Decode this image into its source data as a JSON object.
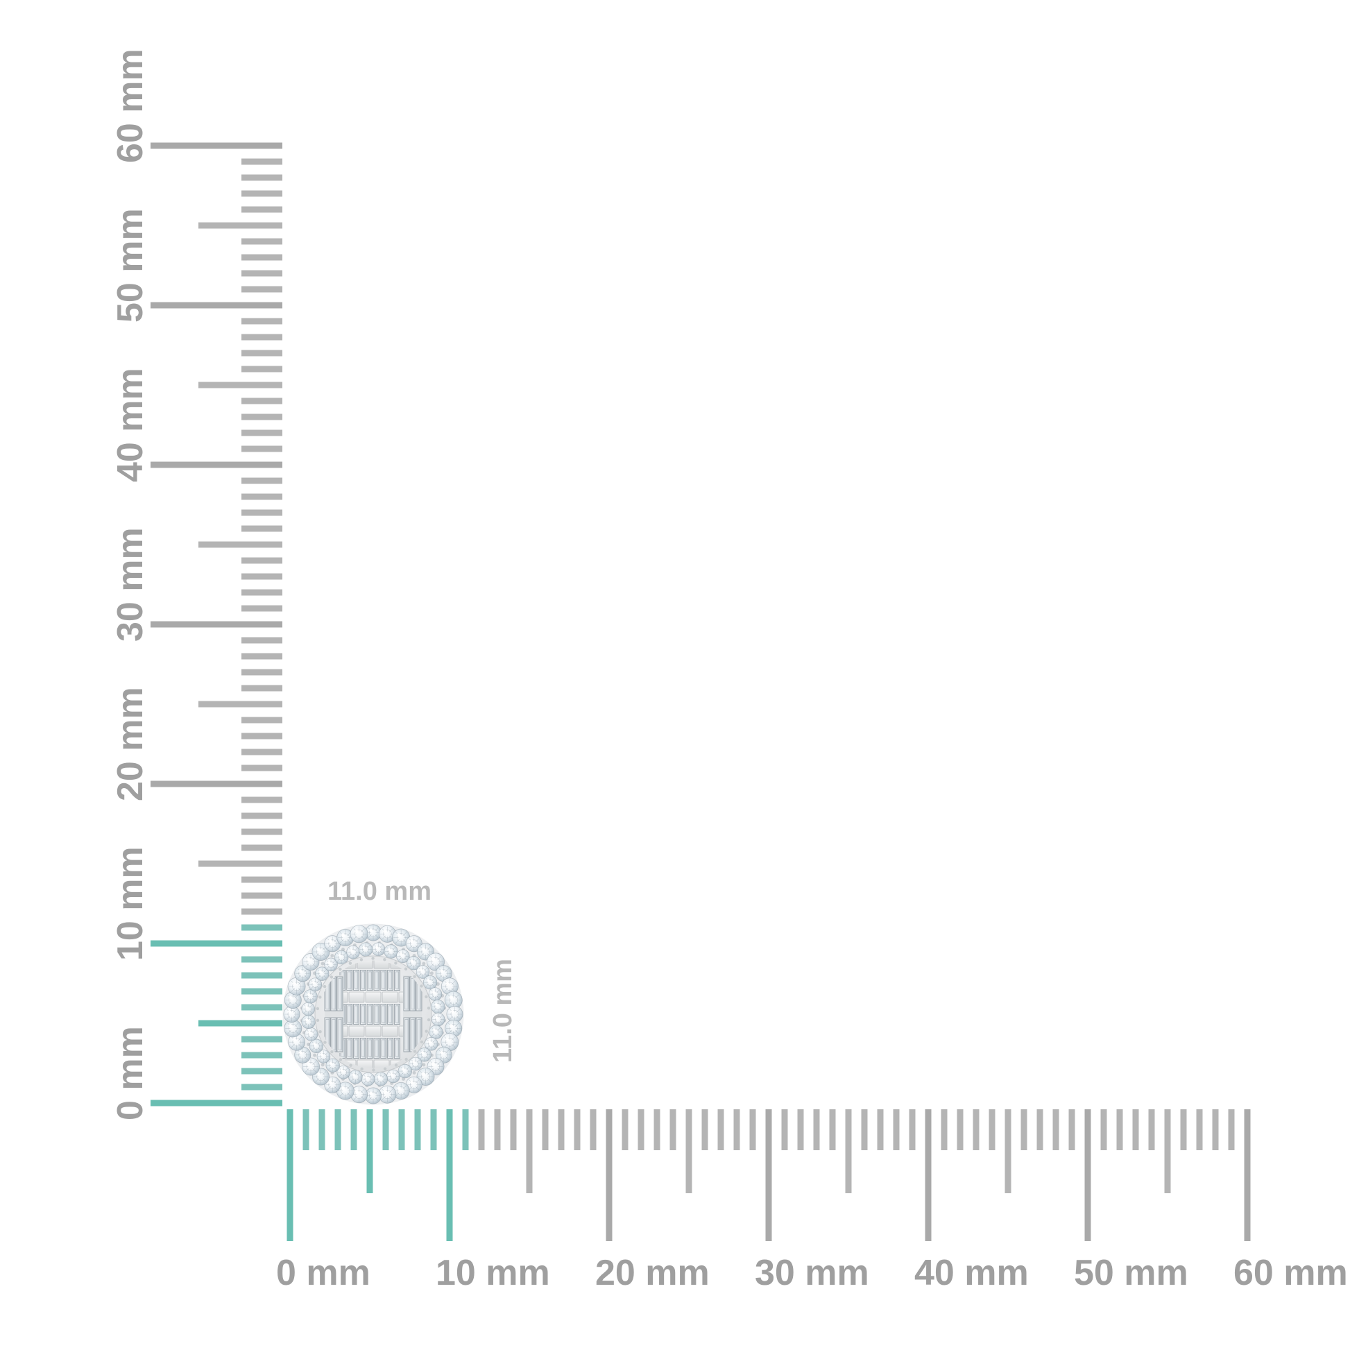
{
  "background_color": "#ffffff",
  "measurement": {
    "width_label": "11.0 mm",
    "height_label": "11.0 mm"
  },
  "rulers": {
    "unit": "mm",
    "min_mm": 0,
    "max_mm": 60,
    "major_step_mm": 10,
    "mid_step_mm": 5,
    "minor_step_mm": 1,
    "highlighted_extent_mm": 11,
    "horizontal_labels": [
      "0 mm",
      "10 mm",
      "20 mm",
      "30 mm",
      "40 mm",
      "50 mm",
      "60 mm"
    ],
    "vertical_labels": [
      "0 mm",
      "10 mm",
      "20 mm",
      "30 mm",
      "40 mm",
      "50 mm",
      "60 mm"
    ],
    "colors": {
      "highlight_minor_tick": "#7cc2b9",
      "highlight_major_tick": "#69beb2",
      "minor_tick": "#b4b4b4",
      "major_tick": "#a9a9a9",
      "label": "#9f9f9f"
    }
  },
  "item": {
    "name": "round diamond cluster stud",
    "width_mm": "11.0",
    "height_mm": "11.0",
    "style": "double halo of round pave diamonds with baguette mosaic center",
    "metal_color": "#e4e6e8",
    "diamond_color": "#dce5ec"
  }
}
